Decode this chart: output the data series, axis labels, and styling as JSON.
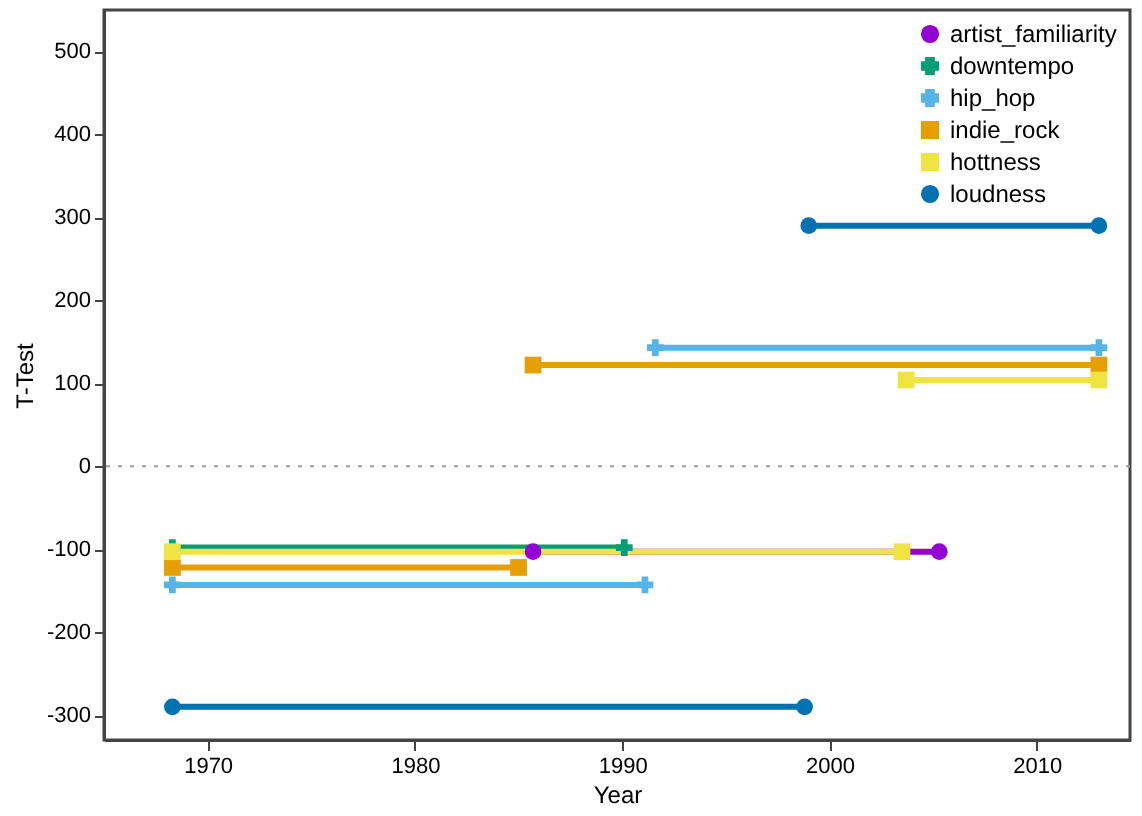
{
  "chart_data": {
    "type": "line",
    "xlabel": "Year",
    "ylabel": "T-Test",
    "xlim": [
      1965,
      2014.5
    ],
    "xticks": [
      1970,
      1980,
      1990,
      2000,
      2010
    ],
    "ylim": [
      -330,
      550
    ],
    "yticks": [
      -300,
      -200,
      -100,
      0,
      100,
      200,
      300,
      400,
      500
    ],
    "grid": false,
    "legend": "top right",
    "ref_lines": [
      {
        "axis": "y",
        "value": 0,
        "color": "#a0a0a0",
        "line_style": "dotted"
      }
    ],
    "series": [
      {
        "name": "artist_familiarity",
        "color": "#9400d3",
        "marker": "circle",
        "x": [
          1985.7,
          2005.3
        ],
        "values": [
          -103,
          -103
        ]
      },
      {
        "name": "downtempo",
        "color": "#009e73",
        "marker": "cross",
        "x": [
          1968.3,
          1990.1
        ],
        "values": [
          -98,
          -98
        ]
      },
      {
        "name": "hip_hop",
        "color": "#56b4e9",
        "marker": "cross",
        "x": [
          1968.3,
          1991.1,
          null,
          1991.6,
          2013
        ],
        "values": [
          -143,
          -143,
          null,
          143,
          143
        ]
      },
      {
        "name": "indie_rock",
        "color": "#e69f00",
        "marker": "square",
        "x": [
          1968.3,
          1985.0,
          null,
          1985.7,
          2013
        ],
        "values": [
          -122,
          -122,
          null,
          122,
          122
        ]
      },
      {
        "name": "hottness",
        "color": "#f0e442",
        "marker": "square",
        "x": [
          1968.3,
          2003.5,
          null,
          2003.7,
          2013
        ],
        "values": [
          -103,
          -103,
          null,
          104,
          104
        ]
      },
      {
        "name": "loudness",
        "color": "#0072b2",
        "marker": "circle",
        "x": [
          1968.3,
          1998.8,
          null,
          1999.0,
          2013
        ],
        "values": [
          -290,
          -290,
          null,
          290,
          290
        ]
      }
    ]
  }
}
